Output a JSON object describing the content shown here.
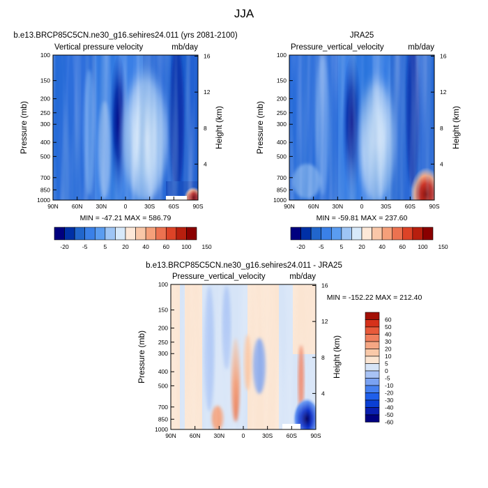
{
  "title": "JJA",
  "colors": {
    "main_scale": [
      "#00007f",
      "#0030a6",
      "#2166cc",
      "#3a80e8",
      "#5a9cf0",
      "#9ec5f5",
      "#d7e9fa",
      "#fde8d8",
      "#f9c7a8",
      "#f5a07a",
      "#ec7250",
      "#dd4327",
      "#b81f0e",
      "#8a0000"
    ],
    "diff_scale": [
      "#000080",
      "#0a1fb0",
      "#0a3fd4",
      "#1f5fea",
      "#4680f0",
      "#7aa2f2",
      "#a8c3f5",
      "#d6e4f7",
      "#fbe5d2",
      "#f9c9a9",
      "#f5a784",
      "#f07f5d",
      "#e85a3a",
      "#d6311a",
      "#a30f05"
    ]
  },
  "chart_data": [
    {
      "type": "heatmap",
      "subtitle": "b.e13.BRCP85C5CN.ne30_g16.sehires24.011 (yrs 2081-2100)",
      "title": "Vertical pressure velocity",
      "units": "mb/day",
      "xlabel": "",
      "ylabel": "Pressure (mb)",
      "y2label": "Height (km)",
      "x_ticks": [
        "90N",
        "60N",
        "30N",
        "0",
        "30S",
        "60S",
        "90S"
      ],
      "y_ticks": [
        100,
        150,
        200,
        250,
        300,
        400,
        500,
        700,
        850,
        1000
      ],
      "y2_ticks": [
        4,
        8,
        12,
        16
      ],
      "ylim": [
        1000,
        100
      ],
      "stats": "MIN = -47.21   MAX = 586.79",
      "colorbar_labels": [
        "-20",
        "-5",
        "5",
        "20",
        "40",
        "60",
        "100",
        "150"
      ],
      "colorbar_levels": [
        -40,
        -30,
        -20,
        -10,
        -5,
        0,
        5,
        10,
        20,
        30,
        40,
        60,
        100,
        150
      ]
    },
    {
      "type": "heatmap",
      "subtitle": "JRA25",
      "title": "Pressure_vertical_velocity",
      "units": "mb/day",
      "xlabel": "",
      "ylabel": "Pressure (mb)",
      "y2label": "Height (km)",
      "x_ticks": [
        "90N",
        "60N",
        "30N",
        "0",
        "30S",
        "60S",
        "90S"
      ],
      "y_ticks": [
        100,
        150,
        200,
        250,
        300,
        400,
        500,
        700,
        850,
        1000
      ],
      "y2_ticks": [
        4,
        8,
        12,
        16
      ],
      "ylim": [
        1000,
        100
      ],
      "stats": "MIN = -59.81   MAX = 237.60",
      "colorbar_labels": [
        "-20",
        "-5",
        "5",
        "20",
        "40",
        "60",
        "100",
        "150"
      ],
      "colorbar_levels": [
        -40,
        -30,
        -20,
        -10,
        -5,
        0,
        5,
        10,
        20,
        30,
        40,
        60,
        100,
        150
      ]
    },
    {
      "type": "heatmap",
      "subtitle": "b.e13.BRCP85C5CN.ne30_g16.sehires24.011 - JRA25",
      "title": "Pressure_vertical_velocity",
      "units": "mb/day",
      "xlabel": "",
      "ylabel": "Pressure (mb)",
      "y2label": "Height (km)",
      "x_ticks": [
        "90N",
        "60N",
        "30N",
        "0",
        "30S",
        "60S",
        "90S"
      ],
      "y_ticks": [
        100,
        150,
        200,
        250,
        300,
        400,
        500,
        700,
        850,
        1000
      ],
      "y2_ticks": [
        4,
        8,
        12,
        16
      ],
      "ylim": [
        1000,
        100
      ],
      "stats": "MIN = -152.22   MAX = 212.40",
      "colorbar_labels": [
        "60",
        "50",
        "40",
        "30",
        "20",
        "10",
        "5",
        "0",
        "-5",
        "-10",
        "-20",
        "-30",
        "-40",
        "-50",
        "-60"
      ],
      "colorbar_levels": [
        60,
        50,
        40,
        30,
        20,
        10,
        5,
        0,
        -5,
        -10,
        -20,
        -30,
        -40,
        -50,
        -60
      ]
    }
  ]
}
